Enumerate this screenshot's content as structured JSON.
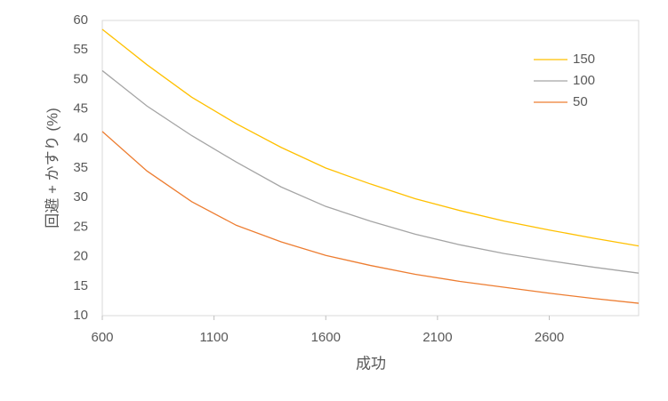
{
  "chart_data": {
    "type": "line",
    "xlabel": "成功",
    "ylabel": "回避 + かすり (%)",
    "x": [
      600,
      800,
      1000,
      1200,
      1400,
      1600,
      1800,
      2000,
      2200,
      2400,
      2600,
      2800,
      3000
    ],
    "series": [
      {
        "name": "150",
        "color": "#ffc000",
        "values": [
          58.5,
          52.5,
          47.0,
          42.5,
          38.5,
          35.0,
          32.3,
          29.8,
          27.8,
          26.0,
          24.5,
          23.1,
          21.8
        ]
      },
      {
        "name": "100",
        "color": "#a5a5a5",
        "values": [
          51.5,
          45.5,
          40.5,
          36.0,
          31.8,
          28.5,
          26.0,
          23.8,
          22.0,
          20.5,
          19.3,
          18.2,
          17.2
        ]
      },
      {
        "name": "50",
        "color": "#ed7d31",
        "values": [
          41.2,
          34.5,
          29.3,
          25.3,
          22.5,
          20.2,
          18.5,
          17.0,
          15.8,
          14.8,
          13.8,
          12.9,
          12.1
        ]
      }
    ],
    "xlim": [
      600,
      3000
    ],
    "xticks": [
      600,
      1100,
      1600,
      2100,
      2600
    ],
    "ylim": [
      10,
      60
    ],
    "yticks": [
      10,
      15,
      20,
      25,
      30,
      35,
      40,
      45,
      50,
      55,
      60
    ],
    "grid": false,
    "legend": "upper right"
  }
}
